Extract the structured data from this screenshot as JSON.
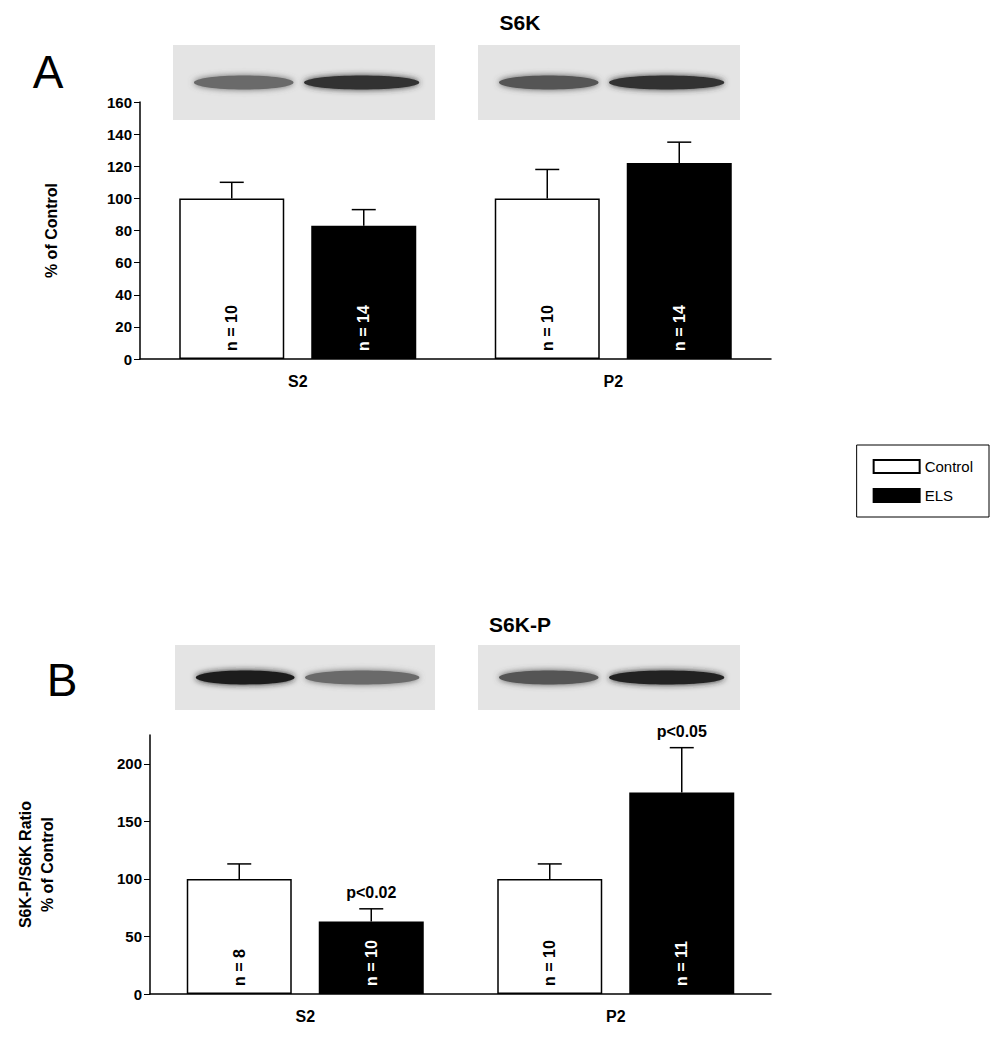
{
  "chart_data": [
    {
      "type": "bar",
      "panel_label": "A",
      "title": "S6K",
      "categories": [
        "S2",
        "P2"
      ],
      "ylabel": "% of Control",
      "ylim": [
        0,
        160
      ],
      "yticks": [
        0,
        20,
        40,
        60,
        80,
        100,
        120,
        140,
        160
      ],
      "grid": false,
      "legend": "right",
      "series": [
        {
          "name": "Control",
          "color": "#ffffff",
          "values": [
            100,
            100
          ],
          "errors": [
            10,
            18
          ],
          "n_labels": [
            "n = 10",
            "n = 10"
          ]
        },
        {
          "name": "ELS",
          "color": "#000000",
          "values": [
            83,
            122
          ],
          "errors": [
            10,
            13
          ],
          "n_labels": [
            "n = 14",
            "n = 14"
          ]
        }
      ]
    },
    {
      "type": "bar",
      "panel_label": "B",
      "title": "S6K-P",
      "categories": [
        "S2",
        "P2"
      ],
      "ylabel": [
        "S6K-P/S6K Ratio",
        "% of Control"
      ],
      "ylim": [
        0,
        225
      ],
      "yticks": [
        0,
        50,
        100,
        150,
        200
      ],
      "grid": false,
      "series": [
        {
          "name": "Control",
          "color": "#ffffff",
          "values": [
            100,
            100
          ],
          "errors": [
            13,
            13
          ],
          "n_labels": [
            "n = 8",
            "n = 10"
          ]
        },
        {
          "name": "ELS",
          "color": "#000000",
          "values": [
            63,
            175
          ],
          "errors": [
            11,
            39
          ],
          "n_labels": [
            "n = 10",
            "n = 11"
          ]
        }
      ],
      "annotations": [
        {
          "category": "S2",
          "series": "ELS",
          "text": "p<0.02"
        },
        {
          "category": "P2",
          "series": "ELS",
          "text": "p<0.05"
        }
      ]
    }
  ]
}
